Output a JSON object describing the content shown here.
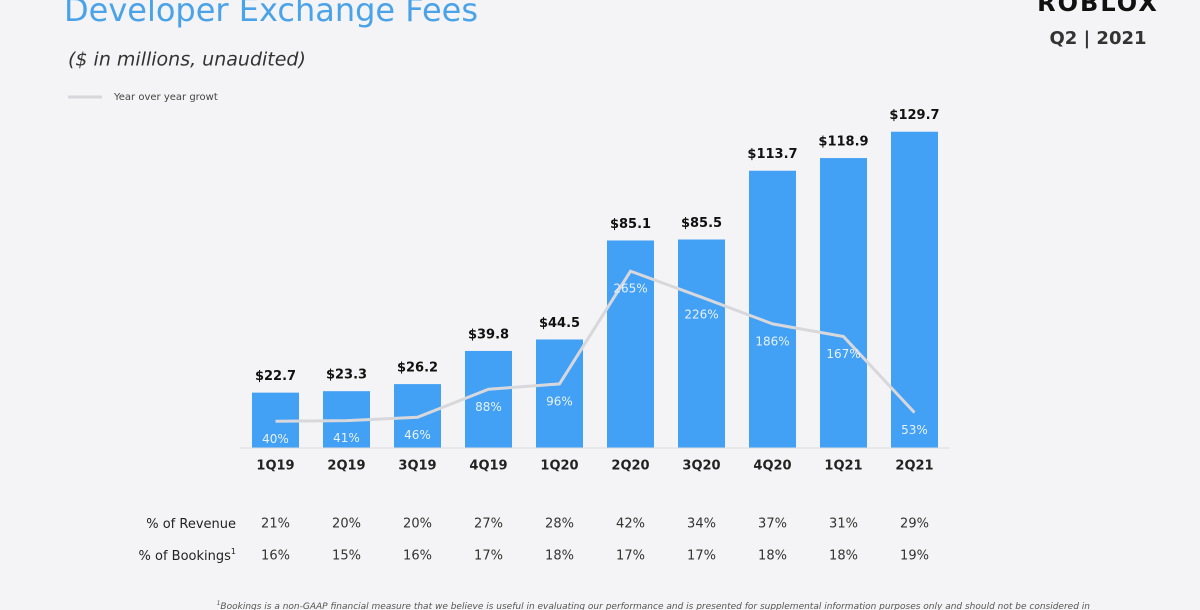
{
  "brand": {
    "logo": "ROBLOX",
    "period": "Q2 | 2021"
  },
  "chart_data": {
    "type": "bar",
    "title": "Developer Exchange Fees",
    "subtitle": "($ in millions,  unaudited)",
    "categories": [
      "1Q19",
      "2Q19",
      "3Q19",
      "4Q19",
      "1Q20",
      "2Q20",
      "3Q20",
      "4Q20",
      "1Q21",
      "2Q21"
    ],
    "values": [
      22.7,
      23.3,
      26.2,
      39.8,
      44.5,
      85.1,
      85.5,
      113.7,
      118.9,
      129.7
    ],
    "value_labels": [
      "$22.7",
      "$23.3",
      "$26.2",
      "$39.8",
      "$44.5",
      "$85.1",
      "$85.5",
      "$113.7",
      "$118.9",
      "$129.7"
    ],
    "color": "#42a0f5",
    "ylim": [
      0,
      130
    ],
    "y2lim": [
      0,
      475
    ],
    "series": [
      {
        "name": "Year over year growt",
        "type": "line",
        "axis": "y2",
        "color": "#d8d8dc",
        "values": [
          40,
          41,
          46,
          88,
          96,
          265,
          226,
          186,
          167,
          53
        ],
        "value_labels": [
          "40%",
          "41%",
          "46%",
          "88%",
          "96%",
          "265%",
          "226%",
          "186%",
          "167%",
          "53%"
        ]
      }
    ]
  },
  "table": {
    "rows": [
      {
        "label": "% of Revenue",
        "values": [
          "21%",
          "20%",
          "20%",
          "27%",
          "28%",
          "42%",
          "34%",
          "37%",
          "31%",
          "29%"
        ]
      },
      {
        "label": "% of Bookings",
        "label_note": "1",
        "values": [
          "16%",
          "15%",
          "16%",
          "17%",
          "18%",
          "17%",
          "17%",
          "18%",
          "18%",
          "19%"
        ]
      }
    ]
  },
  "footnote": {
    "mark": "1",
    "text": "Bookings is a non-GAAP financial measure that we believe is useful in evaluating our performance and is presented for supplemental information purposes only and should not be considered in"
  }
}
